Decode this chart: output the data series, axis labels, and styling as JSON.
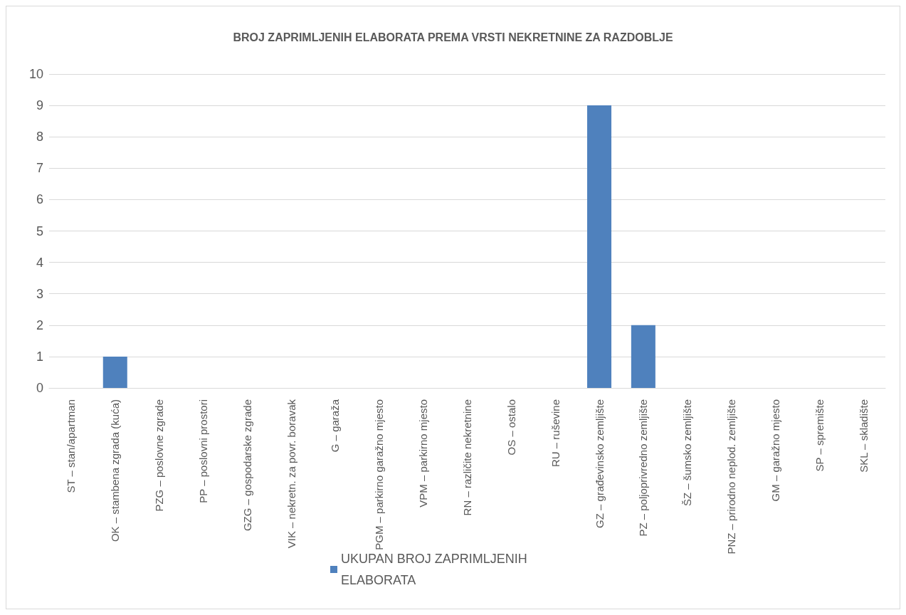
{
  "chart_data": {
    "type": "bar",
    "title": "BROJ ZAPRIMLJENIH ELABORATA PREMA VRSTI NEKRETNINE ZA RAZDOBLJE",
    "categories": [
      "ST – stan/apartman",
      "OK – stambena zgrada (kuća)",
      "PZG – poslovne zgrade",
      "PP – poslovni prostori",
      "GZG – gospodarske zgrade",
      "VIK – nekretn. za povr. boravak",
      "G – garaža",
      "PGM – parkirno garažno mjesto",
      "VPM – parkirno mjesto",
      "RN – različite nekretnine",
      "OS – ostalo",
      "RU – ruševine",
      "GZ – građevinsko zemljište",
      "PZ – poljoprivredno zemljište",
      "ŠZ – šumsko zemljište",
      "PNZ – prirodno neplod. zemljište",
      "GM – garažno mjesto",
      "SP – spremište",
      "SKL – skladište"
    ],
    "series": [
      {
        "name": "UKUPAN BROJ ZAPRIMLJENIH ELABORATA",
        "color": "#4f81bd",
        "values": [
          0,
          1,
          0,
          0,
          0,
          0,
          0,
          0,
          0,
          0,
          0,
          0,
          9,
          2,
          0,
          0,
          0,
          0,
          0
        ]
      }
    ],
    "ylim": [
      0,
      10
    ],
    "yticks": [
      0,
      1,
      2,
      3,
      4,
      5,
      6,
      7,
      8,
      9,
      10
    ],
    "grid": "y",
    "legend": "bottom"
  }
}
